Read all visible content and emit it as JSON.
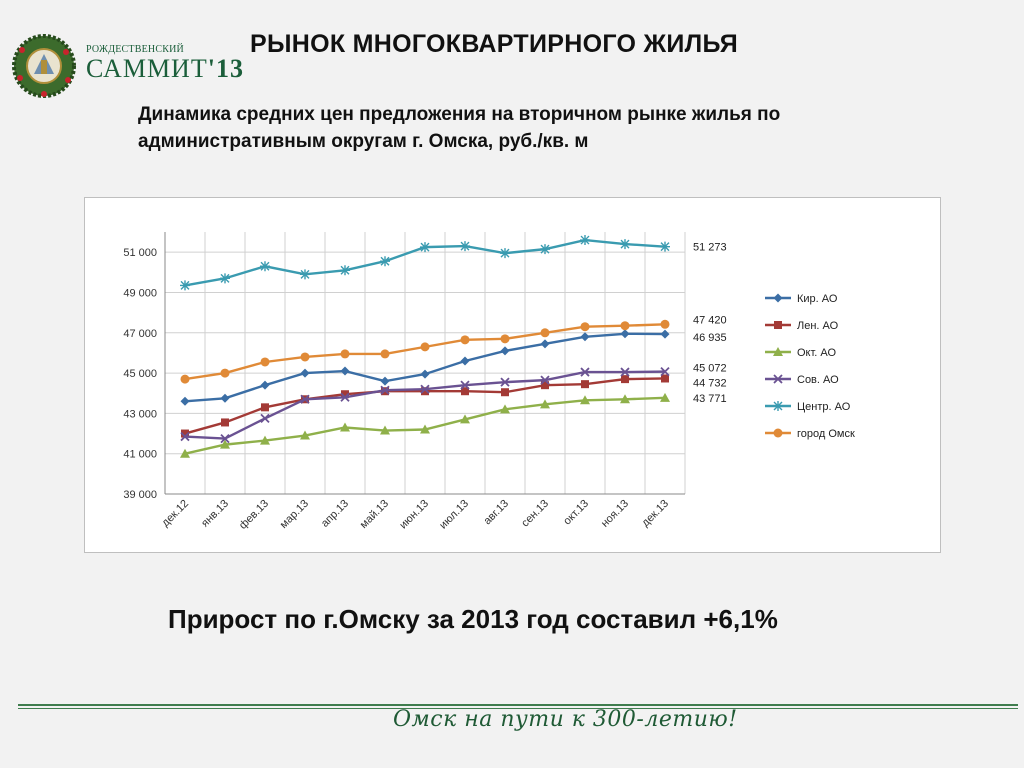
{
  "logo": {
    "top_text": "РОЖДЕСТВЕНСКИЙ",
    "main_text": "САММИТ",
    "year_text": "'13"
  },
  "page_title": "РЫНОК МНОГОКВАРТИРНОГО ЖИЛЬЯ",
  "subtitle": "Динамика средних цен предложения на вторичном рынке жилья по административным округам г. Омска, руб./кв. м",
  "chart_data": {
    "type": "line",
    "categories": [
      "дек.12",
      "янв.13",
      "фев.13",
      "мар.13",
      "апр.13",
      "май.13",
      "июн.13",
      "июл.13",
      "авг.13",
      "сен.13",
      "окт.13",
      "ноя.13",
      "дек.13"
    ],
    "ylim": [
      39000,
      52000
    ],
    "yticks": [
      39000,
      41000,
      43000,
      45000,
      47000,
      49000,
      51000
    ],
    "ytick_labels": [
      "39 000",
      "41 000",
      "43 000",
      "45 000",
      "47 000",
      "49 000",
      "51 000"
    ],
    "grid": true,
    "legend_position": "right",
    "series": [
      {
        "name": "Кир. АО",
        "color": "#3b6ea5",
        "marker": "diamond",
        "values": [
          43600,
          43750,
          44400,
          45000,
          45100,
          44600,
          44950,
          45600,
          46100,
          46450,
          46800,
          46950,
          46935
        ],
        "end_label": "46 935"
      },
      {
        "name": "Лен. АО",
        "color": "#a33a36",
        "marker": "square",
        "values": [
          42000,
          42550,
          43300,
          43700,
          43950,
          44100,
          44100,
          44100,
          44050,
          44400,
          44450,
          44700,
          44732
        ],
        "end_label": "44 732"
      },
      {
        "name": "Окт. АО",
        "color": "#8fb04a",
        "marker": "triangle",
        "values": [
          41000,
          41450,
          41650,
          41900,
          42300,
          42150,
          42200,
          42700,
          43200,
          43450,
          43650,
          43700,
          43771
        ],
        "end_label": "43 771"
      },
      {
        "name": "Сов. АО",
        "color": "#6a5292",
        "marker": "x",
        "values": [
          41850,
          41750,
          42750,
          43700,
          43800,
          44150,
          44200,
          44400,
          44550,
          44650,
          45050,
          45050,
          45072
        ],
        "end_label": "45 072"
      },
      {
        "name": "Центр. АО",
        "color": "#3a9bb0",
        "marker": "star",
        "values": [
          49350,
          49700,
          50300,
          49900,
          50100,
          50550,
          51250,
          51300,
          50950,
          51150,
          51600,
          51400,
          51273
        ],
        "end_label": "51 273"
      },
      {
        "name": "город Омск",
        "color": "#e08a37",
        "marker": "circle",
        "values": [
          44700,
          45000,
          45550,
          45800,
          45950,
          45950,
          46300,
          46650,
          46700,
          47000,
          47300,
          47350,
          47420
        ],
        "end_label": "47 420"
      }
    ]
  },
  "conclusion": "Прирост по г.Омску за 2013 год составил +6,1%",
  "footer": {
    "slogan": "Омск на пути к 300-летию!"
  }
}
